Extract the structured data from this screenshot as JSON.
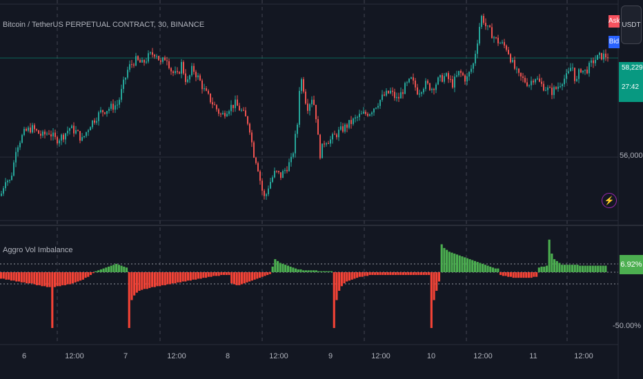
{
  "header": {
    "symbol_title": "Bitcoin / TetherUS PERPETUAL CONTRACT, 30, BINANCE",
    "currency_button": "USDT",
    "ask_label": "Ask",
    "bid_label": "Bid"
  },
  "indicator": {
    "title": "Aggro Vol Imbalance",
    "current_value_label": "6.92%"
  },
  "price_axis": {
    "last_price": "58,229.8",
    "countdown": "27:42",
    "tick_label": "56,000.0"
  },
  "indicator_axis": {
    "tick_label": "-50.00%"
  },
  "time_axis": {
    "labels": [
      "6",
      "12:00",
      "7",
      "12:00",
      "8",
      "12:00",
      "9",
      "12:00",
      "10",
      "12:00",
      "11",
      "12:00"
    ]
  },
  "colors": {
    "background": "#131722",
    "up": "#26a69a",
    "down": "#ef5350",
    "imbalance_pos": "#4caf50",
    "imbalance_neg": "#f44336",
    "grid": "#2a2e39"
  },
  "icons": {
    "alert": "lightning-icon"
  },
  "chart_data": [
    {
      "type": "candlestick",
      "title": "Bitcoin / TetherUS PERPETUAL CONTRACT, 30, BINANCE",
      "ylabel": "",
      "y_tick": 56000,
      "last_price": 58229.8,
      "price_path_x": [
        0,
        8,
        12,
        18,
        22,
        28,
        35,
        45,
        60,
        70,
        80,
        90,
        100,
        110,
        118,
        130,
        145,
        158,
        170,
        178,
        185,
        195,
        205,
        215,
        225,
        232,
        240,
        248,
        256,
        262,
        270,
        278,
        288,
        296,
        304,
        312,
        320,
        330,
        340,
        350,
        360,
        366,
        372,
        378,
        383,
        387,
        392,
        398,
        406,
        414,
        422,
        430,
        434,
        438,
        444,
        452,
        458,
        462,
        466,
        470,
        478,
        490,
        505,
        520,
        535,
        545,
        555,
        565,
        575,
        585,
        595,
        605,
        615,
        625,
        635,
        645,
        655,
        665,
        675,
        685,
        692,
        696,
        700,
        704,
        710,
        718,
        726,
        734,
        742,
        750,
        758,
        766,
        774,
        782,
        790,
        798,
        806,
        814,
        822,
        828,
        834,
        840,
        846,
        852,
        860,
        870,
        880
      ],
      "price_path_y": [
        55400,
        55900,
        55700,
        56100,
        56600,
        56800,
        57000,
        57100,
        56900,
        57000,
        56800,
        56900,
        57100,
        57000,
        56800,
        57200,
        57500,
        57600,
        57700,
        58200,
        58600,
        58800,
        58700,
        58900,
        59000,
        58700,
        58900,
        58500,
        58400,
        58700,
        58200,
        58600,
        58300,
        58000,
        57800,
        57600,
        57400,
        57600,
        57700,
        57500,
        57200,
        56500,
        56200,
        55600,
        55300,
        55600,
        55800,
        56000,
        55900,
        56100,
        56300,
        57200,
        58400,
        58200,
        57600,
        57900,
        57300,
        56400,
        56600,
        56800,
        56800,
        57000,
        57200,
        57400,
        57500,
        57700,
        57900,
        58000,
        57800,
        58100,
        58300,
        58000,
        58200,
        58100,
        58300,
        58400,
        58200,
        58500,
        58300,
        58700,
        59400,
        59900,
        59800,
        59600,
        59500,
        59300,
        59200,
        59100,
        58700,
        58400,
        58300,
        58200,
        58400,
        58200,
        58100,
        58000,
        58100,
        58300,
        58400,
        58700,
        58200,
        58600,
        58500,
        58600,
        58800,
        58900,
        58900
      ]
    },
    {
      "type": "bar",
      "title": "Aggro Vol Imbalance",
      "ylabel": "",
      "y_tick": -50,
      "current_value": 6.92,
      "series": [
        {
          "values_pct": [
            -7,
            -7,
            -8,
            -8,
            -9,
            -9,
            -10,
            -10,
            -11,
            -11,
            -12,
            -12,
            -12,
            -13,
            -14,
            -14,
            -15,
            -15,
            -16,
            -16,
            -60,
            -16,
            -15,
            -15,
            -14,
            -14,
            -13,
            -13,
            -12,
            -11,
            -10,
            -9,
            -8,
            -6,
            -5,
            -3,
            -1,
            1,
            2,
            3,
            4,
            5,
            6,
            7,
            8,
            9,
            8,
            7,
            6,
            5,
            -60,
            -30,
            -25,
            -22,
            -20,
            -19,
            -18,
            -18,
            -17,
            -16,
            -16,
            -15,
            -15,
            -14,
            -14,
            -13,
            -13,
            -12,
            -12,
            -11,
            -11,
            -10,
            -10,
            -9,
            -9,
            -8,
            -8,
            -7,
            -7,
            -6,
            -6,
            -5,
            -5,
            -4,
            -4,
            -4,
            -3,
            -3,
            -3,
            -3,
            -12,
            -13,
            -14,
            -14,
            -13,
            -12,
            -11,
            -10,
            -9,
            -8,
            -7,
            -6,
            -5,
            -4,
            -3,
            -2,
            6,
            14,
            12,
            10,
            9,
            8,
            7,
            6,
            5,
            4,
            3,
            3,
            2,
            2,
            2,
            2,
            2,
            2,
            1,
            1,
            1,
            1,
            1,
            1,
            -60,
            -30,
            -20,
            -15,
            -12,
            -10,
            -9,
            -8,
            -7,
            -6,
            -5,
            -5,
            -4,
            -4,
            -3,
            -3,
            -3,
            -3,
            -3,
            -3,
            -3,
            -3,
            -3,
            -3,
            -3,
            -3,
            -3,
            -3,
            -3,
            -3,
            -3,
            -3,
            -3,
            -3,
            -3,
            -3,
            -3,
            -3,
            -60,
            -30,
            -20,
            -10,
            30,
            26,
            24,
            22,
            21,
            20,
            19,
            18,
            17,
            16,
            15,
            14,
            13,
            12,
            11,
            10,
            9,
            8,
            7,
            6,
            5,
            4,
            4,
            -3,
            -4,
            -4,
            -5,
            -5,
            -6,
            -6,
            -6,
            -6,
            -6,
            -6,
            -6,
            -6,
            -5,
            -5,
            5,
            6,
            6,
            7,
            35,
            20,
            14,
            12,
            10,
            8,
            8,
            8,
            8,
            8,
            8,
            8,
            7,
            7,
            7,
            7,
            7,
            7,
            7,
            7,
            7,
            7,
            7
          ]
        }
      ]
    }
  ]
}
